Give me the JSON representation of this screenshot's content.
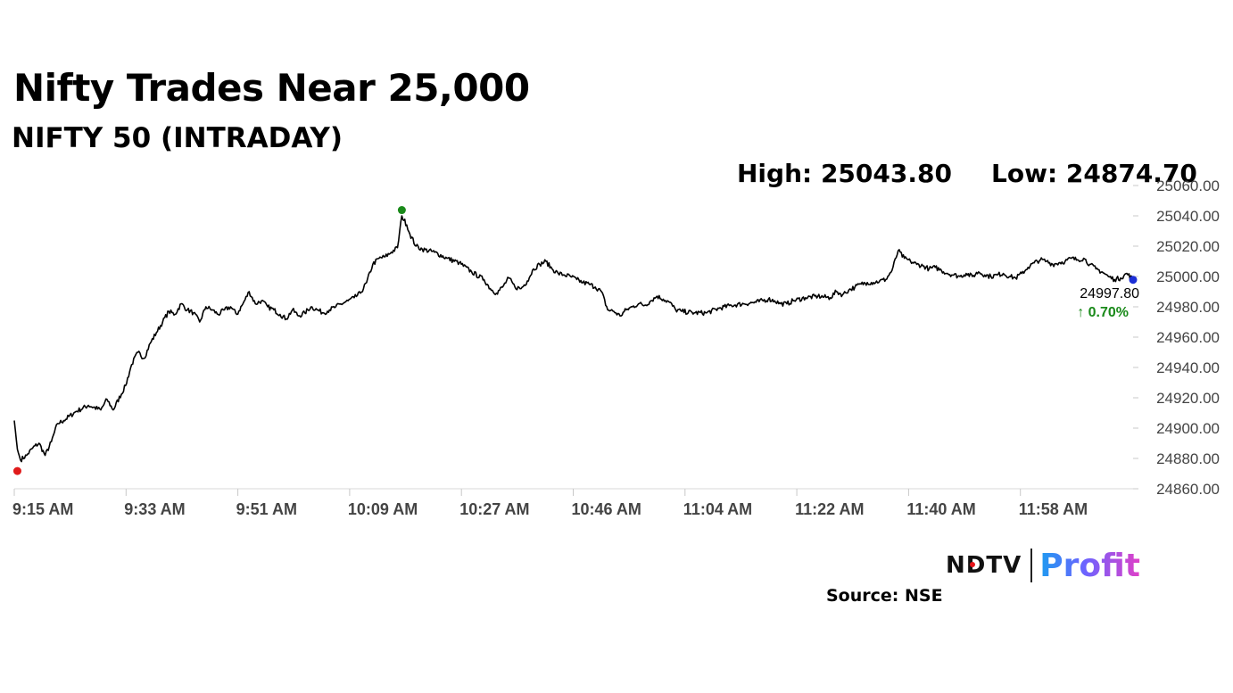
{
  "title": "Nifty Trades Near 25,000",
  "subtitle": "NIFTY 50 (INTRADAY)",
  "stats": {
    "high": "High: 25043.80",
    "low": "Low: 24874.70"
  },
  "last": {
    "value": "24997.80",
    "change": "↑ 0.70%"
  },
  "source": "Source: NSE",
  "brand": {
    "left": "NDTV",
    "right": "Profit"
  },
  "colors": {
    "line": "#000000",
    "high_marker": "#1a8a1a",
    "low_marker": "#e01b1b",
    "last_marker": "#1c2fd6",
    "change_text": "#1a8a1a"
  },
  "chart_data": {
    "type": "line",
    "x_ticks": [
      "9:15 AM",
      "9:33 AM",
      "9:51 AM",
      "10:09 AM",
      "10:27 AM",
      "10:46 AM",
      "11:04 AM",
      "11:22 AM",
      "11:40 AM",
      "11:58 AM"
    ],
    "y_ticks": [
      "25060.00",
      "25040.00",
      "25020.00",
      "25000.00",
      "24980.00",
      "24960.00",
      "24940.00",
      "24920.00",
      "24900.00",
      "24880.00",
      "24860.00"
    ],
    "ylim": [
      24860,
      25060
    ],
    "xlim_minutes": [
      0,
      181
    ],
    "anchors": [
      [
        0,
        24905
      ],
      [
        0.5,
        24886
      ],
      [
        1,
        24879
      ],
      [
        2,
        24882
      ],
      [
        3,
        24887
      ],
      [
        4,
        24890
      ],
      [
        5,
        24882
      ],
      [
        6,
        24891
      ],
      [
        7,
        24903
      ],
      [
        8,
        24905
      ],
      [
        10,
        24911
      ],
      [
        12,
        24915
      ],
      [
        14,
        24912
      ],
      [
        15,
        24919
      ],
      [
        16,
        24912
      ],
      [
        18,
        24928
      ],
      [
        19,
        24942
      ],
      [
        20,
        24950
      ],
      [
        21,
        24946
      ],
      [
        22,
        24956
      ],
      [
        23,
        24963
      ],
      [
        24,
        24970
      ],
      [
        25,
        24977
      ],
      [
        26,
        24975
      ],
      [
        27,
        24982
      ],
      [
        28,
        24978
      ],
      [
        29,
        24976
      ],
      [
        30,
        24970
      ],
      [
        31,
        24980
      ],
      [
        32,
        24978
      ],
      [
        33,
        24975
      ],
      [
        34,
        24978
      ],
      [
        35,
        24980
      ],
      [
        36,
        24975
      ],
      [
        37,
        24982
      ],
      [
        38,
        24990
      ],
      [
        39,
        24982
      ],
      [
        40,
        24984
      ],
      [
        41,
        24980
      ],
      [
        42,
        24978
      ],
      [
        43,
        24975
      ],
      [
        44,
        24972
      ],
      [
        45,
        24978
      ],
      [
        46,
        24974
      ],
      [
        47,
        24976
      ],
      [
        48,
        24980
      ],
      [
        49,
        24978
      ],
      [
        50,
        24976
      ],
      [
        51,
        24978
      ],
      [
        52,
        24980
      ],
      [
        54,
        24984
      ],
      [
        55,
        24986
      ],
      [
        56,
        24989
      ],
      [
        57,
        24996
      ],
      [
        58,
        25008
      ],
      [
        59,
        25012
      ],
      [
        60,
        25013
      ],
      [
        61,
        25016
      ],
      [
        62,
        25019
      ],
      [
        62.7,
        25040
      ],
      [
        63.5,
        25034
      ],
      [
        64,
        25028
      ],
      [
        65,
        25020
      ],
      [
        66,
        25018
      ],
      [
        68,
        25016
      ],
      [
        70,
        25012
      ],
      [
        72,
        25009
      ],
      [
        74,
        25003
      ],
      [
        76,
        24998
      ],
      [
        77,
        24992
      ],
      [
        78,
        24989
      ],
      [
        79,
        24993
      ],
      [
        80,
        24999
      ],
      [
        81,
        24993
      ],
      [
        82,
        24992
      ],
      [
        83,
        24997
      ],
      [
        84,
        25005
      ],
      [
        85,
        25008
      ],
      [
        86,
        25010
      ],
      [
        87,
        25005
      ],
      [
        88,
        25002
      ],
      [
        89,
        25001
      ],
      [
        90,
        25000
      ],
      [
        91,
        24998
      ],
      [
        92,
        24996
      ],
      [
        93,
        24995
      ],
      [
        94,
        24993
      ],
      [
        95,
        24990
      ],
      [
        96,
        24978
      ],
      [
        97,
        24977
      ],
      [
        98,
        24974
      ],
      [
        99,
        24978
      ],
      [
        100,
        24980
      ],
      [
        101,
        24982
      ],
      [
        102,
        24981
      ],
      [
        103,
        24984
      ],
      [
        104,
        24987
      ],
      [
        105,
        24985
      ],
      [
        106,
        24983
      ],
      [
        107,
        24978
      ],
      [
        108,
        24977
      ],
      [
        110,
        24976
      ],
      [
        112,
        24976
      ],
      [
        114,
        24979
      ],
      [
        116,
        24981
      ],
      [
        118,
        24982
      ],
      [
        120,
        24983
      ],
      [
        122,
        24985
      ],
      [
        123,
        24984
      ],
      [
        124,
        24982
      ],
      [
        125,
        24982
      ],
      [
        126,
        24984
      ],
      [
        128,
        24986
      ],
      [
        130,
        24987
      ],
      [
        132,
        24986
      ],
      [
        133,
        24990
      ],
      [
        134,
        24988
      ],
      [
        135,
        24991
      ],
      [
        136,
        24993
      ],
      [
        137,
        24995
      ],
      [
        138,
        24996
      ],
      [
        139,
        24996
      ],
      [
        140,
        24997
      ],
      [
        141,
        24998
      ],
      [
        142,
        25004
      ],
      [
        143,
        25017
      ],
      [
        144,
        25012
      ],
      [
        145,
        25010
      ],
      [
        146,
        25008
      ],
      [
        147,
        25007
      ],
      [
        148,
        25005
      ],
      [
        149,
        25006
      ],
      [
        150,
        25004
      ],
      [
        151,
        25002
      ],
      [
        152,
        25001
      ],
      [
        153,
        25000
      ],
      [
        154,
        25002
      ],
      [
        155,
        25000
      ],
      [
        156,
        25003
      ],
      [
        157,
        25001
      ],
      [
        158,
        25000
      ],
      [
        159,
        25001
      ],
      [
        160,
        25002
      ],
      [
        161,
        25000
      ],
      [
        162,
        24999
      ],
      [
        163,
        25002
      ],
      [
        164,
        25006
      ],
      [
        165,
        25009
      ],
      [
        166,
        25011
      ],
      [
        167,
        25010
      ],
      [
        168,
        25008
      ],
      [
        169,
        25009
      ],
      [
        170,
        25010
      ],
      [
        171,
        25012
      ],
      [
        172,
        25011
      ],
      [
        173,
        25012
      ],
      [
        174,
        25008
      ],
      [
        175,
        25005
      ],
      [
        176,
        25003
      ],
      [
        177,
        25000
      ],
      [
        178,
        24998
      ],
      [
        179,
        24999
      ],
      [
        180,
        25002
      ],
      [
        181,
        24998
      ]
    ],
    "markers": {
      "high": [
        62.7,
        25043.8
      ],
      "low": [
        0.5,
        24874.7
      ],
      "last": [
        181,
        24997.8
      ]
    }
  }
}
